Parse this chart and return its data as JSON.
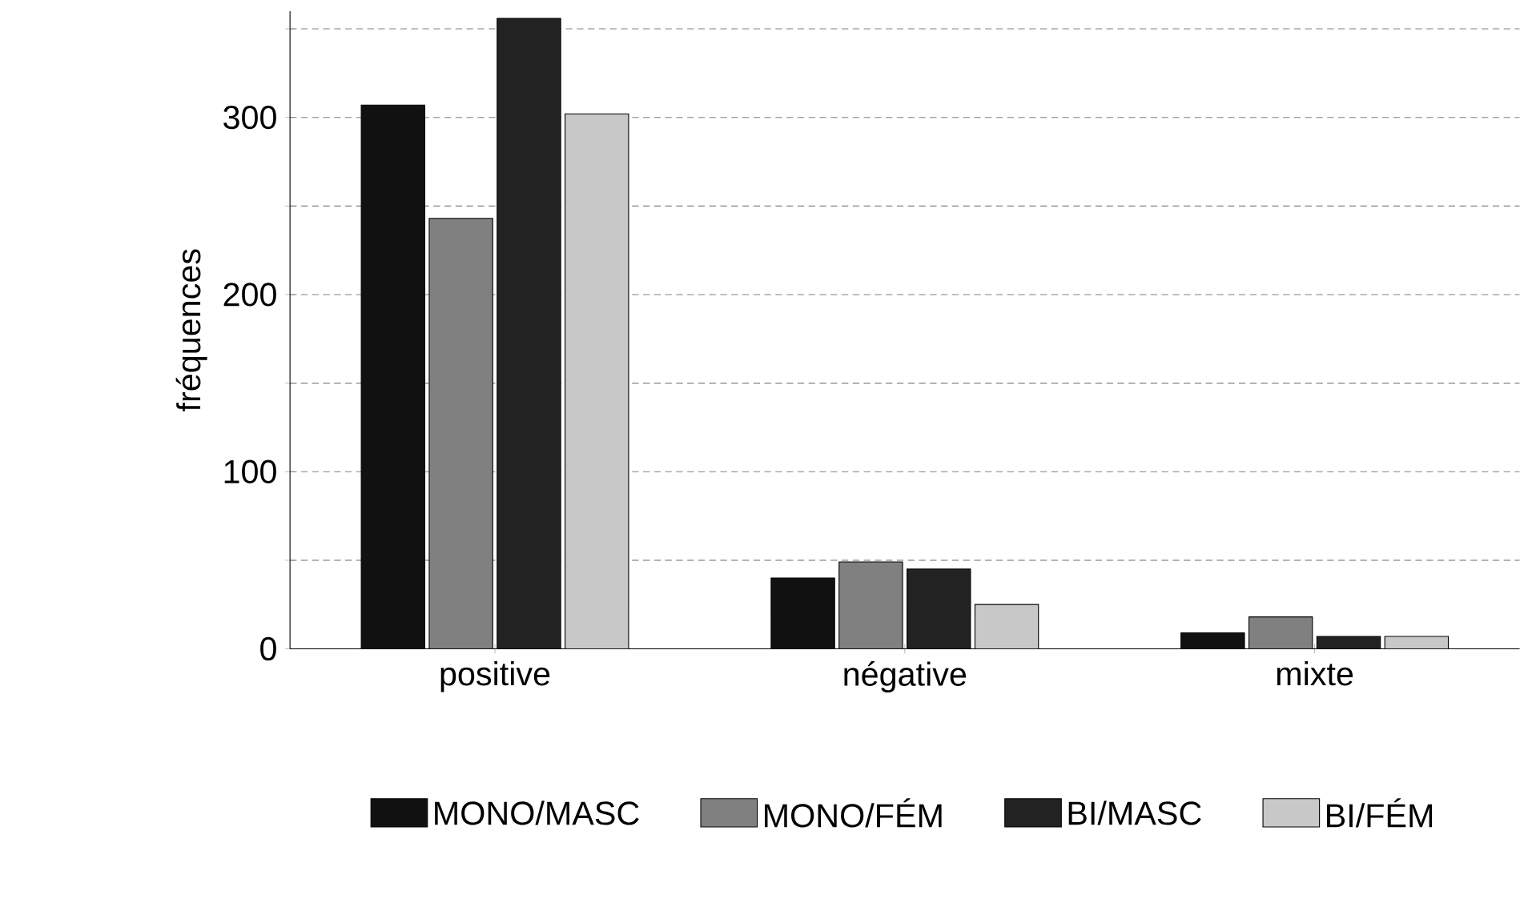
{
  "chart_data": {
    "type": "bar",
    "ylabel": "fréquences",
    "categories": [
      "positive",
      "négative",
      "mixte"
    ],
    "series": [
      {
        "name": "MONO/MASC",
        "color": "#111111",
        "values": [
          307,
          40,
          9
        ]
      },
      {
        "name": "MONO/FÉM",
        "color": "#808080",
        "values": [
          243,
          49,
          18
        ]
      },
      {
        "name": "BI/MASC",
        "color": "#222222",
        "values": [
          356,
          45,
          7
        ]
      },
      {
        "name": "BI/FÉM",
        "color": "#c8c8c8",
        "values": [
          302,
          25,
          7
        ]
      }
    ],
    "ylim": [
      0,
      360
    ],
    "yticks": [
      0,
      {
        "value": 50,
        "label": null
      },
      100,
      {
        "value": 150,
        "label": null
      },
      200,
      {
        "value": 250,
        "label": null
      },
      300,
      {
        "value": 350,
        "label": null
      }
    ],
    "grid": "y",
    "legend": "bottom"
  }
}
